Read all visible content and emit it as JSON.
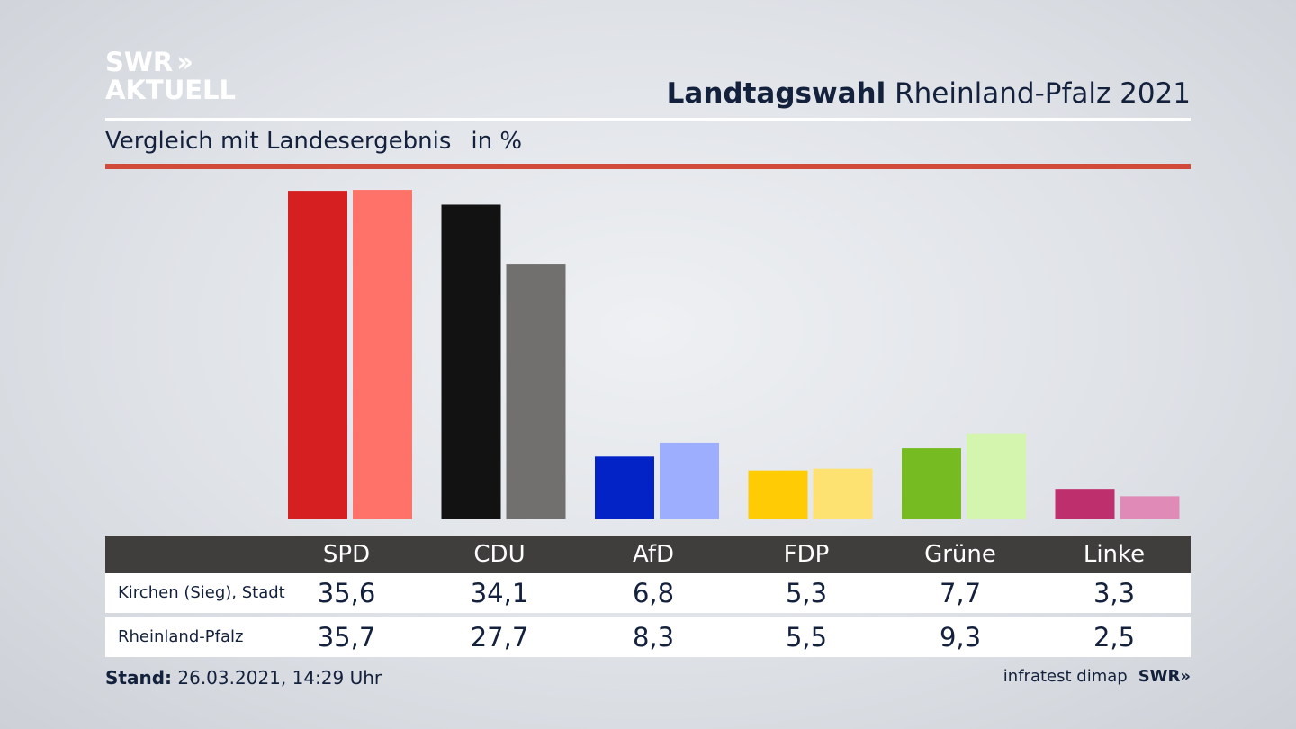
{
  "logo": {
    "line1": "SWR",
    "chevrons": "››",
    "line2": "AKTUELL"
  },
  "title": {
    "bold": "Landtagswahl",
    "rest": "Rheinland-Pfalz 2021"
  },
  "subtitle": {
    "text": "Vergleich mit Landesergebnis",
    "unit": "in %"
  },
  "chart_data": {
    "type": "bar",
    "categories": [
      "SPD",
      "CDU",
      "AfD",
      "FDP",
      "Grüne",
      "Linke"
    ],
    "series": [
      {
        "name": "Kirchen (Sieg), Stadt",
        "values": [
          35.6,
          34.1,
          6.8,
          5.3,
          7.7,
          3.3
        ],
        "colors": [
          "#d51f21",
          "#121212",
          "#0423c7",
          "#ffcb05",
          "#76bb21",
          "#be2f6e"
        ]
      },
      {
        "name": "Rheinland-Pfalz",
        "values": [
          35.7,
          27.7,
          8.3,
          5.5,
          9.3,
          2.5
        ],
        "colors": [
          "#ff7269",
          "#72706e",
          "#9eaefe",
          "#fde272",
          "#d4f5ad",
          "#e08ab8"
        ]
      }
    ],
    "ylim": [
      0,
      36
    ],
    "legend": "table-below"
  },
  "table": {
    "headers": [
      "SPD",
      "CDU",
      "AfD",
      "FDP",
      "Grüne",
      "Linke"
    ],
    "rows": [
      {
        "label": "Kirchen (Sieg), Stadt",
        "values": [
          "35,6",
          "34,1",
          "6,8",
          "5,3",
          "7,7",
          "3,3"
        ]
      },
      {
        "label": "Rheinland-Pfalz",
        "values": [
          "35,7",
          "27,7",
          "8,3",
          "5,5",
          "9,3",
          "2,5"
        ]
      }
    ]
  },
  "footer": {
    "stand_label": "Stand:",
    "stand_value": "26.03.2021, 14:29 Uhr",
    "source": "infratest dimap",
    "brand": "SWR»"
  }
}
